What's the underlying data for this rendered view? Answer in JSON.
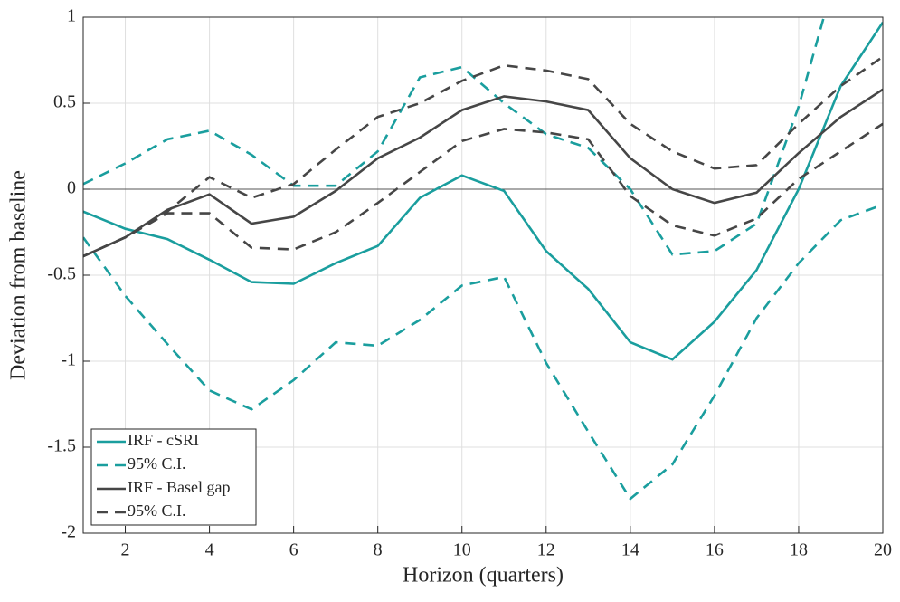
{
  "chart_data": {
    "type": "line",
    "xlabel": "Horizon (quarters)",
    "ylabel": "Deviation from baseline",
    "x": [
      1,
      2,
      3,
      4,
      5,
      6,
      7,
      8,
      9,
      10,
      11,
      12,
      13,
      14,
      15,
      16,
      17,
      18,
      19,
      20
    ],
    "xlim": [
      1,
      20
    ],
    "xticks": [
      2,
      4,
      6,
      8,
      10,
      12,
      14,
      16,
      18,
      20
    ],
    "ylim": [
      -2,
      1
    ],
    "yticks": [
      -2,
      -1.5,
      -1,
      -0.5,
      0,
      0.5,
      1
    ],
    "grid": true,
    "zero_line": true,
    "legend": "lower left",
    "series": [
      {
        "name": "IRF - cSRI",
        "color": "#1a9e9e",
        "style": "solid",
        "values": [
          -0.13,
          -0.23,
          -0.29,
          -0.41,
          -0.54,
          -0.55,
          -0.43,
          -0.33,
          -0.05,
          0.08,
          -0.01,
          -0.36,
          -0.58,
          -0.89,
          -0.99,
          -0.77,
          -0.47,
          0.0,
          0.6,
          0.97
        ]
      },
      {
        "name": "95% C.I.",
        "color": "#1a9e9e",
        "style": "dashed",
        "upper": [
          0.03,
          0.15,
          0.29,
          0.34,
          0.2,
          0.02,
          0.02,
          0.22,
          0.65,
          0.71,
          0.5,
          0.32,
          0.24,
          0.0,
          -0.38,
          -0.36,
          -0.2,
          0.48,
          1.35,
          1.7
        ],
        "lower": [
          -0.28,
          -0.62,
          -0.9,
          -1.17,
          -1.28,
          -1.11,
          -0.89,
          -0.91,
          -0.76,
          -0.56,
          -0.51,
          -1.01,
          -1.41,
          -1.8,
          -1.6,
          -1.2,
          -0.75,
          -0.43,
          -0.18,
          -0.09
        ]
      },
      {
        "name": "IRF - Basel gap",
        "color": "#464646",
        "style": "solid",
        "values": [
          -0.39,
          -0.28,
          -0.12,
          -0.03,
          -0.2,
          -0.16,
          -0.01,
          0.18,
          0.3,
          0.46,
          0.54,
          0.51,
          0.46,
          0.18,
          0.0,
          -0.08,
          -0.02,
          0.21,
          0.42,
          0.58
        ]
      },
      {
        "name": "95% C.I.",
        "color": "#464646",
        "style": "dashed",
        "upper": [
          -0.39,
          -0.28,
          -0.13,
          0.07,
          -0.05,
          0.03,
          0.23,
          0.42,
          0.5,
          0.63,
          0.72,
          0.69,
          0.64,
          0.38,
          0.22,
          0.12,
          0.14,
          0.38,
          0.6,
          0.77
        ],
        "lower": [
          -0.39,
          -0.28,
          -0.14,
          -0.14,
          -0.34,
          -0.35,
          -0.25,
          -0.08,
          0.1,
          0.28,
          0.35,
          0.33,
          0.29,
          -0.04,
          -0.21,
          -0.27,
          -0.17,
          0.06,
          0.22,
          0.38
        ]
      }
    ]
  }
}
